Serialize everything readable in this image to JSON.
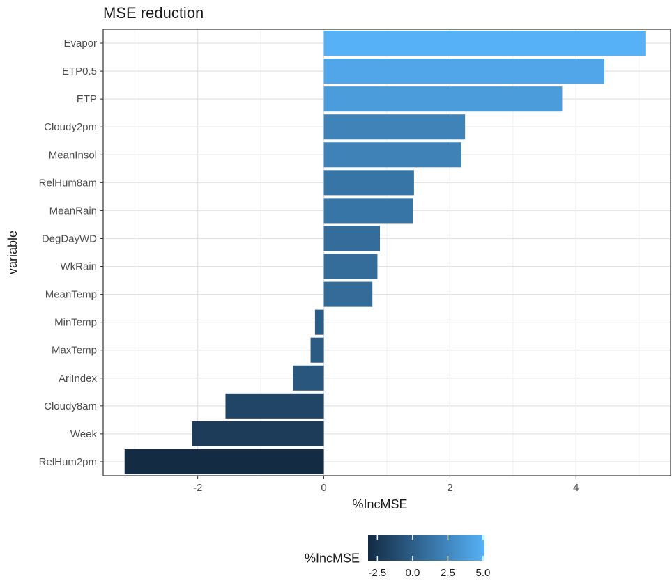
{
  "chart_data": {
    "type": "bar",
    "orientation": "horizontal",
    "title": "MSE reduction",
    "xlabel": "%IncMSE",
    "ylabel": "variable",
    "categories": [
      "Evapor",
      "ETP0.5",
      "ETP",
      "Cloudy2pm",
      "MeanInsol",
      "RelHum8am",
      "MeanRain",
      "DegDayWD",
      "WkRain",
      "MeanTemp",
      "MinTemp",
      "MaxTemp",
      "AriIndex",
      "Cloudy8am",
      "Week",
      "RelHum2pm"
    ],
    "values": [
      5.1,
      4.45,
      3.78,
      2.24,
      2.18,
      1.43,
      1.41,
      0.89,
      0.85,
      0.77,
      -0.14,
      -0.21,
      -0.49,
      -1.56,
      -2.09,
      -3.16
    ],
    "xlim": [
      -3.5,
      5.5
    ],
    "xticks": [
      -2,
      0,
      2,
      4
    ],
    "grid": true,
    "color_scale": {
      "title": "%IncMSE",
      "low": "#132b43",
      "high": "#56b1f7",
      "domain": [
        -3.16,
        5.1
      ],
      "ticks": [
        -2.5,
        0.0,
        2.5,
        5.0
      ],
      "tick_labels": [
        "-2.5",
        "0.0",
        "2.5",
        "5.0"
      ]
    },
    "legend_position": "bottom"
  }
}
